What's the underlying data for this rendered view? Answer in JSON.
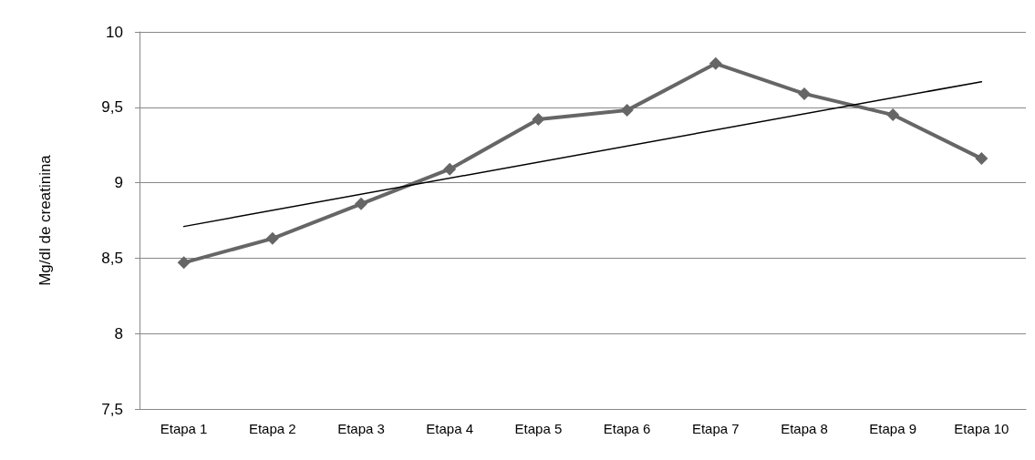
{
  "chart_data": {
    "type": "line",
    "ylabel": "Mg/dl de creatinina",
    "categories": [
      "Etapa 1",
      "Etapa 2",
      "Etapa 3",
      "Etapa 4",
      "Etapa 5",
      "Etapa 6",
      "Etapa 7",
      "Etapa 8",
      "Etapa 9",
      "Etapa 10"
    ],
    "series": [
      {
        "color": "#666666",
        "marker": "diamond",
        "values": [
          8.47,
          8.63,
          8.86,
          9.09,
          9.42,
          9.48,
          9.79,
          9.59,
          9.45,
          9.16
        ]
      },
      {
        "type": "line",
        "color": "#000000",
        "marker": "none",
        "x": [
          "Etapa 1",
          "Etapa 10"
        ],
        "values": [
          8.71,
          9.67
        ]
      }
    ],
    "ylim": [
      7.5,
      10
    ],
    "yticks": [
      {
        "value": 7.5,
        "label": "7,5"
      },
      8,
      {
        "value": 8.5,
        "label": "8,5"
      },
      9,
      {
        "value": 9.5,
        "label": "9,5"
      },
      10
    ],
    "grid": "y"
  }
}
